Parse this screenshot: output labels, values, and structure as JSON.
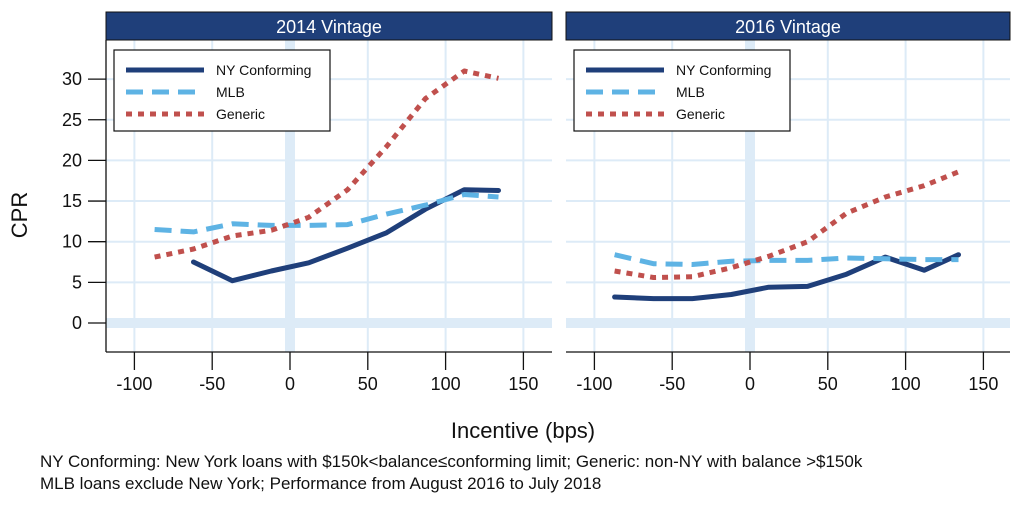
{
  "chart_data": [
    {
      "type": "line",
      "title": "2014 Vintage",
      "xlabel": "Incentive (bps)",
      "ylabel": "CPR",
      "xlim": [
        -115,
        165
      ],
      "ylim": [
        -3.5,
        33
      ],
      "xticks": [
        -100,
        -50,
        0,
        50,
        100,
        150
      ],
      "yticks": [
        0,
        5,
        10,
        15,
        20,
        25,
        30
      ],
      "grid": true,
      "legend_position": "top-left",
      "series": [
        {
          "name": "NY Conforming",
          "x": [
            -62,
            -37,
            -12,
            12,
            37,
            62,
            87,
            112,
            134
          ],
          "y": [
            7.5,
            5.2,
            6.4,
            7.4,
            9.2,
            11.1,
            14.0,
            16.4,
            16.3
          ]
        },
        {
          "name": "MLB",
          "x": [
            -87,
            -62,
            -37,
            -12,
            12,
            37,
            62,
            87,
            112,
            134
          ],
          "y": [
            11.5,
            11.2,
            12.2,
            12.0,
            12.0,
            12.1,
            13.4,
            14.5,
            15.8,
            15.5
          ]
        },
        {
          "name": "Generic",
          "x": [
            -87,
            -62,
            -37,
            -12,
            12,
            37,
            62,
            87,
            112,
            134
          ],
          "y": [
            8.1,
            9.1,
            10.7,
            11.4,
            13.0,
            16.4,
            21.7,
            27.6,
            31.0,
            30.1
          ]
        }
      ]
    },
    {
      "type": "line",
      "title": "2016 Vintage",
      "xlabel": "Incentive (bps)",
      "ylabel": "CPR",
      "xlim": [
        -115,
        165
      ],
      "ylim": [
        -3.5,
        33
      ],
      "xticks": [
        -100,
        -50,
        0,
        50,
        100,
        150
      ],
      "yticks": [
        0,
        5,
        10,
        15,
        20,
        25,
        30
      ],
      "grid": true,
      "legend_position": "top-left",
      "series": [
        {
          "name": "NY Conforming",
          "x": [
            -87,
            -62,
            -37,
            -12,
            12,
            37,
            62,
            87,
            112,
            134
          ],
          "y": [
            3.2,
            3.0,
            3.0,
            3.5,
            4.4,
            4.5,
            6.0,
            8.1,
            6.5,
            8.4
          ]
        },
        {
          "name": "MLB",
          "x": [
            -87,
            -62,
            -37,
            -12,
            12,
            37,
            62,
            87,
            112,
            134
          ],
          "y": [
            8.4,
            7.3,
            7.2,
            7.6,
            7.7,
            7.7,
            8.0,
            7.9,
            7.8,
            7.8
          ]
        },
        {
          "name": "Generic",
          "x": [
            -87,
            -62,
            -37,
            -12,
            12,
            37,
            62,
            87,
            112,
            134
          ],
          "y": [
            6.4,
            5.6,
            5.7,
            6.8,
            8.2,
            10.0,
            13.5,
            15.5,
            16.9,
            18.6
          ]
        }
      ]
    }
  ],
  "series_colors": {
    "NY Conforming": "#1f3f7a",
    "MLB": "#5eb3e4",
    "Generic": "#c0504d"
  },
  "header_color": "#1f3f7a",
  "grid_color": "#ddebf7",
  "shared": {
    "xlabel": "Incentive (bps)",
    "ylabel": "CPR"
  },
  "notes": [
    "NY Conforming: New York loans with $150k<balance≤conforming limit; Generic: non-NY with balance >$150k",
    "MLB loans exclude New York; Performance from August 2016 to July 2018"
  ]
}
